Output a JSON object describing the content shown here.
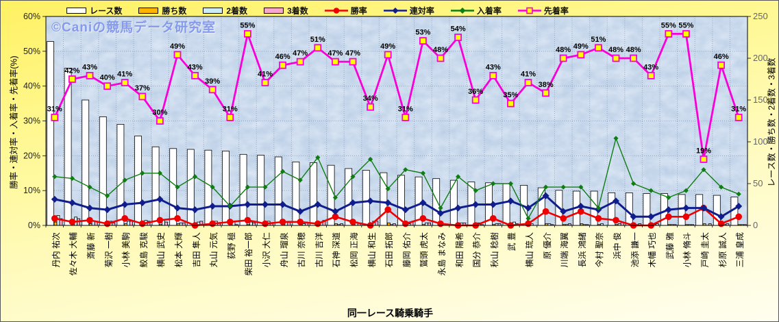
{
  "watermark": "©Caniの競馬データ研究室",
  "chart_data": {
    "type": "bar+line combo, dual axis",
    "xlabel": "同一レース騎乗騎手",
    "left_axis": {
      "title": "勝率・連対率・入着率・先着率(%)",
      "min": 0,
      "max": 60,
      "tick_labels": [
        "0%",
        "10%",
        "20%",
        "30%",
        "40%",
        "50%",
        "60%"
      ]
    },
    "right_axis": {
      "title": "レース数・勝ち数・2着数・3着数",
      "min": 0,
      "max": 250,
      "tick_labels": [
        "0",
        "50",
        "100",
        "150",
        "200",
        "250"
      ]
    },
    "grid": "dotted major gridlines, both directions",
    "legend_position": "top",
    "categories": [
      "丹内 祐次",
      "佐々木 大輔",
      "斎藤 新",
      "菊沢 一樹",
      "小林 美駒",
      "鮫島 克駿",
      "横山 武史",
      "松本 大輝",
      "吉田 隼人",
      "丸山 元気",
      "荻野 極",
      "柴田 裕一郎",
      "小沢 大仁",
      "舟山 瑠泉",
      "古川 奈穂",
      "古川 吉洋",
      "石神 深道",
      "松岡 正海",
      "横山 和生",
      "石田 拓郎",
      "藤岡 佑介",
      "鷲頭 虎太",
      "永島 まなみ",
      "和田 陽希",
      "国分 恭介",
      "秋山 稔樹",
      "武 豊",
      "横山 琉人",
      "原 優介",
      "川端 海翼",
      "長浜 鴻緒",
      "今村 聖奈",
      "浜中 俊",
      "池添 謙一",
      "木幡 巧也",
      "武藤 雅",
      "小林 脩斗",
      "戸崎 圭太",
      "杉原 誠人",
      "三浦 皇成"
    ],
    "bar_series": [
      {
        "key": "race-count",
        "name": "レース数",
        "axis": "right",
        "color": "#FFFFFF",
        "values": [
          220,
          188,
          150,
          130,
          121,
          107,
          94,
          92,
          91,
          90,
          89,
          85,
          84,
          82,
          76,
          75,
          72,
          68,
          66,
          63,
          60,
          58,
          56,
          54,
          52,
          51,
          50,
          48,
          45,
          42,
          41,
          41,
          39,
          39,
          38,
          38,
          37,
          37,
          36,
          34
        ]
      },
      {
        "key": "win-count",
        "name": "勝ち数",
        "axis": "right",
        "color": "#FFB400",
        "values": [
          4,
          2,
          2,
          1,
          2,
          1,
          1,
          2,
          0,
          0,
          1,
          1,
          0,
          1,
          1,
          0,
          2,
          1,
          0,
          3,
          0,
          1,
          0,
          0,
          0,
          1,
          0,
          0,
          2,
          1,
          2,
          1,
          1,
          0,
          0,
          1,
          1,
          2,
          0,
          1
        ]
      },
      {
        "key": "second-count",
        "name": "2着数",
        "axis": "right",
        "color": "#CDEBF8",
        "values": [
          12,
          10,
          5,
          5,
          5,
          6,
          6,
          3,
          4,
          5,
          4,
          4,
          5,
          4,
          2,
          4,
          1,
          4,
          5,
          1,
          2,
          3,
          2,
          3,
          3,
          2,
          4,
          2,
          2,
          1,
          1,
          2,
          2,
          1,
          1,
          1,
          1,
          0,
          1,
          1
        ]
      },
      {
        "key": "third-count",
        "name": "3着数",
        "axis": "right",
        "color": "#F8A8CC",
        "values": [
          8,
          8,
          5,
          3,
          5,
          5,
          4,
          3,
          5,
          3,
          1,
          3,
          3,
          5,
          4,
          6,
          2,
          3,
          5,
          2,
          4,
          3,
          1,
          3,
          1,
          2,
          2,
          0,
          1,
          2,
          1,
          0,
          4,
          2,
          2,
          1,
          1,
          2,
          2,
          1
        ]
      }
    ],
    "line_series": [
      {
        "key": "win-rate",
        "name": "勝率",
        "axis": "left",
        "color": "#EE0000",
        "marker": "circle",
        "show_labels": false,
        "values": [
          2,
          1,
          1.5,
          0.5,
          2,
          0.5,
          1.5,
          2,
          0,
          0.5,
          1,
          1.5,
          0.5,
          1,
          1,
          0.5,
          2.5,
          1,
          0,
          4.5,
          0.5,
          2,
          0.5,
          0,
          0,
          2,
          0,
          0.5,
          4,
          2,
          4,
          2,
          1.5,
          0,
          0,
          2.5,
          2.5,
          5,
          0.5,
          2.5
        ]
      },
      {
        "key": "quinella-rate",
        "name": "連対率",
        "axis": "left",
        "color": "#101D8C",
        "marker": "diamond",
        "show_labels": false,
        "values": [
          7.5,
          6.5,
          5,
          4.5,
          6,
          6.5,
          7.5,
          5,
          4.5,
          5.5,
          5.5,
          6,
          6,
          6,
          4,
          6,
          4,
          6.5,
          7,
          6.5,
          4.5,
          6.5,
          3.5,
          5,
          6,
          6,
          7,
          5,
          8.5,
          4,
          5.5,
          4.5,
          7,
          2.5,
          2.5,
          4.5,
          5,
          5,
          2.5,
          5.5
        ]
      },
      {
        "key": "placing-rate",
        "name": "入着率",
        "axis": "left",
        "color": "#0E7D12",
        "marker": "diamond",
        "show_labels": false,
        "values": [
          14,
          13.5,
          11,
          8.5,
          13,
          15,
          15,
          11,
          14,
          11,
          5.5,
          11,
          11,
          15.5,
          13,
          19.5,
          8,
          14,
          19,
          10.5,
          16,
          15,
          5,
          14,
          10,
          12,
          12,
          2,
          11,
          11,
          11,
          5,
          25,
          12,
          10,
          8,
          10,
          16,
          11,
          9
        ]
      },
      {
        "key": "precede-rate",
        "name": "先着率",
        "axis": "left",
        "color": "#F800D8",
        "marker": "square",
        "marker_fill": "#FFFF00",
        "show_labels": true,
        "label_suffix": "%",
        "values": [
          31,
          42,
          43,
          40,
          41,
          37,
          30,
          49,
          43,
          39,
          31,
          55,
          41,
          46,
          47,
          51,
          47,
          47,
          34,
          49,
          31,
          53,
          48,
          54,
          36,
          43,
          35,
          41,
          38,
          48,
          49,
          51,
          48,
          48,
          43,
          55,
          55,
          19,
          46,
          31
        ]
      }
    ]
  }
}
